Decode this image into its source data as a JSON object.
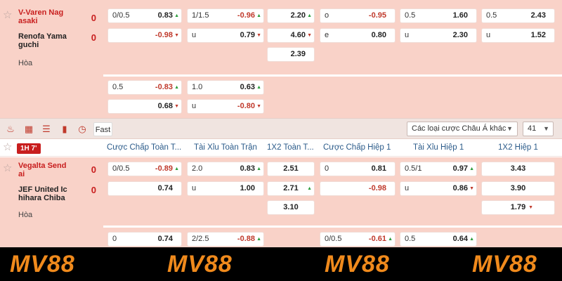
{
  "match1": {
    "home": {
      "name": "V-Varen Nag asaki",
      "score": "0"
    },
    "away": {
      "name": "Renofa Yama guchi",
      "score": "0"
    },
    "draw_label": "Hòa",
    "main_odds": [
      {
        "label": "0/0.5",
        "value": "0.83",
        "trend": "up"
      },
      {
        "label": "",
        "value": "-0.98",
        "trend": "down"
      },
      {
        "label": "1/1.5",
        "value": "-0.96",
        "trend": "up"
      },
      {
        "label": "u",
        "value": "0.79",
        "trend": "down"
      },
      {
        "label": "",
        "value": "2.20",
        "trend": "up"
      },
      {
        "label": "",
        "value": "4.60",
        "trend": "down"
      },
      {
        "label": "",
        "value": "2.39",
        "trend": "down"
      },
      {
        "label": "o",
        "value": "-0.95",
        "trend": ""
      },
      {
        "label": "e",
        "value": "0.80",
        "trend": ""
      },
      {
        "label": "0.5",
        "value": "1.60",
        "trend": ""
      },
      {
        "label": "u",
        "value": "2.30",
        "trend": ""
      },
      {
        "label": "0.5",
        "value": "2.43",
        "trend": ""
      },
      {
        "label": "u",
        "value": "1.52",
        "trend": ""
      }
    ],
    "extra_odds": [
      {
        "label": "0.5",
        "value": "-0.83",
        "trend": "up"
      },
      {
        "label": "",
        "value": "0.68",
        "trend": "down"
      },
      {
        "label": "1.0",
        "value": "0.63",
        "trend": "up"
      },
      {
        "label": "u",
        "value": "-0.80",
        "trend": "down"
      }
    ]
  },
  "toolbar": {
    "icons": [
      "fire-icon",
      "grid-icon",
      "list-icon",
      "chart-icon",
      "clock-icon"
    ],
    "fast_label": "Fast",
    "bet_type_select": "Các loại cược Châu Á khác",
    "count_select": "41"
  },
  "header": {
    "live_badge": "1H 7'",
    "columns": [
      "Cược Chấp Toàn T...",
      "Tài Xỉu Toàn Trận",
      "1X2 Toàn T...",
      "Cược Chấp Hiệp 1",
      "Tài Xỉu Hiệp 1",
      "1X2 Hiệp 1"
    ]
  },
  "match2": {
    "home": {
      "name": "Vegalta Send ai",
      "score": "0"
    },
    "away": {
      "name": "JEF United Ic hihara Chiba",
      "score": "0"
    },
    "draw_label": "Hòa",
    "main_odds": [
      {
        "label": "0/0.5",
        "value": "-0.89",
        "trend": "up"
      },
      {
        "label": "",
        "value": "0.74",
        "trend": ""
      },
      {
        "label": "2.0",
        "value": "0.83",
        "trend": "up"
      },
      {
        "label": "u",
        "value": "1.00",
        "trend": ""
      },
      {
        "label": "",
        "value": "2.51",
        "trend": ""
      },
      {
        "label": "",
        "value": "2.71",
        "trend": "up"
      },
      {
        "label": "",
        "value": "3.10",
        "trend": ""
      },
      {
        "label": "0",
        "value": "0.81",
        "trend": ""
      },
      {
        "label": "",
        "value": "-0.98",
        "trend": ""
      },
      {
        "label": "0.5/1",
        "value": "0.97",
        "trend": "up"
      },
      {
        "label": "u",
        "value": "0.86",
        "trend": "down"
      },
      {
        "label": "",
        "value": "3.43",
        "trend": ""
      },
      {
        "label": "",
        "value": "3.90",
        "trend": ""
      },
      {
        "label": "",
        "value": "1.79",
        "trend": "down"
      }
    ],
    "extra_odds": [
      {
        "label": "0",
        "value": "0.74",
        "trend": ""
      },
      {
        "label": "2/2.5",
        "value": "-0.88",
        "trend": "up"
      },
      {
        "label": "0/0.5",
        "value": "-0.61",
        "trend": "up"
      },
      {
        "label": "0.5",
        "value": "0.64",
        "trend": "up"
      }
    ]
  },
  "watermark": {
    "text": "MV88",
    "color": "#f08a1c"
  },
  "colors": {
    "row_bg": "#f9d2c8",
    "negative": "#c0392b",
    "up": "#2a9d3b",
    "header_text": "#2b5b8a",
    "live_badge": "#c81e1e"
  }
}
